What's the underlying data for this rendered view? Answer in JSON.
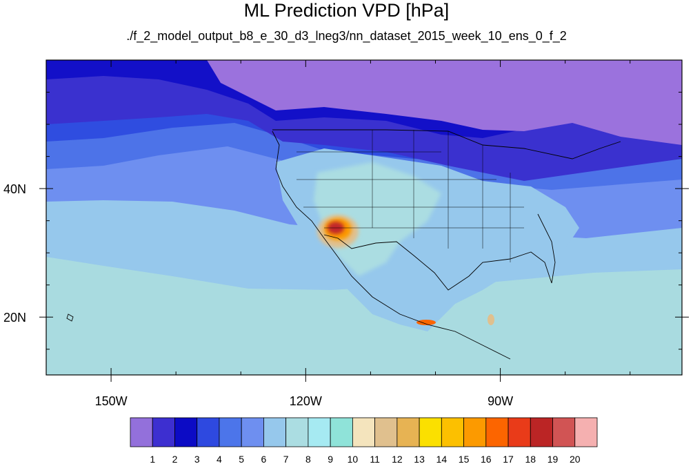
{
  "title": "ML Prediction VPD [hPa]",
  "subtitle": "./f_2_model_output_b8_e_30_d3_lneg3/nn_dataset_2015_week_10_ens_0_f_2",
  "map": {
    "lon_range": [
      -160,
      -62
    ],
    "lat_range": [
      11,
      60
    ],
    "lon_ticks": [
      {
        "lon": -150,
        "label": "150W"
      },
      {
        "lon": -120,
        "label": "120W"
      },
      {
        "lon": -90,
        "label": "90W"
      }
    ],
    "lat_ticks": [
      {
        "lat": 40,
        "label": "40N"
      },
      {
        "lat": 20,
        "label": "20N"
      }
    ],
    "colors": {
      "ocean_far_south": "#a9dbe0",
      "ocean_south": "#96c8ec",
      "ocean_mid": "#6e8ff0",
      "ocean_north": "#4d73e8",
      "ocean_coastal": "#2f4de0",
      "canada": "#9b72dd",
      "northern_band": "#3a31cf",
      "mid_band": "#1310c8",
      "land_mix": "#96c8ec",
      "hot_core": "#c0282a"
    }
  },
  "colorbar": {
    "colors": [
      "#9370db",
      "#3d2fd0",
      "#0c0bc5",
      "#2e49e0",
      "#4c75ea",
      "#6e8ff0",
      "#96c8ec",
      "#abdde2",
      "#a6eaf2",
      "#8fe3d9",
      "#f4e4bd",
      "#e0c08e",
      "#e7b353",
      "#fbe000",
      "#fcc000",
      "#fc9a00",
      "#fc6500",
      "#e93b19",
      "#bb2525",
      "#d15454",
      "#f5b0b0"
    ],
    "labels": [
      "1",
      "2",
      "3",
      "4",
      "5",
      "6",
      "7",
      "8",
      "9",
      "10",
      "11",
      "12",
      "13",
      "14",
      "15",
      "16",
      "17",
      "18",
      "19",
      "20"
    ]
  }
}
